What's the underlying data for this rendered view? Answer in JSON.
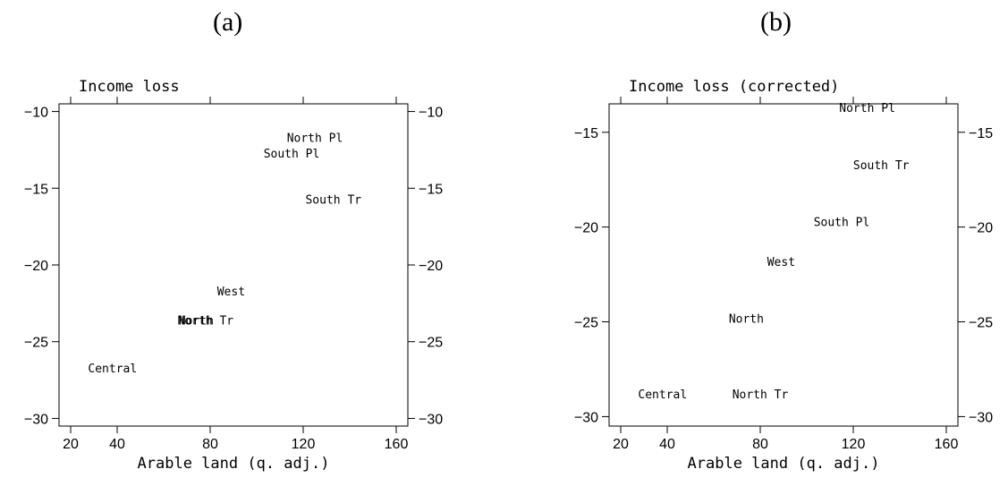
{
  "panels": [
    {
      "label": "(a)"
    },
    {
      "label": "(b)"
    }
  ],
  "chart_data": [
    {
      "type": "scatter",
      "title": "Income loss",
      "xlabel": "Arable land (q. adj.)",
      "ylabel": "",
      "xlim": [
        15,
        165
      ],
      "ylim": [
        -30.5,
        -9.5
      ],
      "xticks": [
        20,
        40,
        80,
        120,
        160
      ],
      "yticks": [
        -10,
        -15,
        -20,
        -25,
        -30
      ],
      "points": [
        {
          "label": "North Pl",
          "x": 125,
          "y": -11.7
        },
        {
          "label": "South Pl",
          "x": 115,
          "y": -12.7
        },
        {
          "label": "South Tr",
          "x": 133,
          "y": -15.7
        },
        {
          "label": "West",
          "x": 89,
          "y": -21.7
        },
        {
          "label": "North",
          "x": 74,
          "y": -23.6
        },
        {
          "label": "North Tr",
          "x": 78,
          "y": -23.6
        },
        {
          "label": "Central",
          "x": 38,
          "y": -26.7
        }
      ]
    },
    {
      "type": "scatter",
      "title": "Income loss (corrected)",
      "xlabel": "Arable land (q. adj.)",
      "ylabel": "",
      "xlim": [
        15,
        165
      ],
      "ylim": [
        -30.5,
        -13.5
      ],
      "xticks": [
        20,
        40,
        80,
        120,
        160
      ],
      "yticks": [
        -15,
        -20,
        -25,
        -30
      ],
      "points": [
        {
          "label": "North Pl",
          "x": 126,
          "y": -13.7
        },
        {
          "label": "South Tr",
          "x": 132,
          "y": -16.7
        },
        {
          "label": "South Pl",
          "x": 115,
          "y": -19.7
        },
        {
          "label": "West",
          "x": 89,
          "y": -21.8
        },
        {
          "label": "North",
          "x": 74,
          "y": -24.8
        },
        {
          "label": "Central",
          "x": 38,
          "y": -28.8
        },
        {
          "label": "North Tr",
          "x": 80,
          "y": -28.8
        }
      ]
    }
  ]
}
